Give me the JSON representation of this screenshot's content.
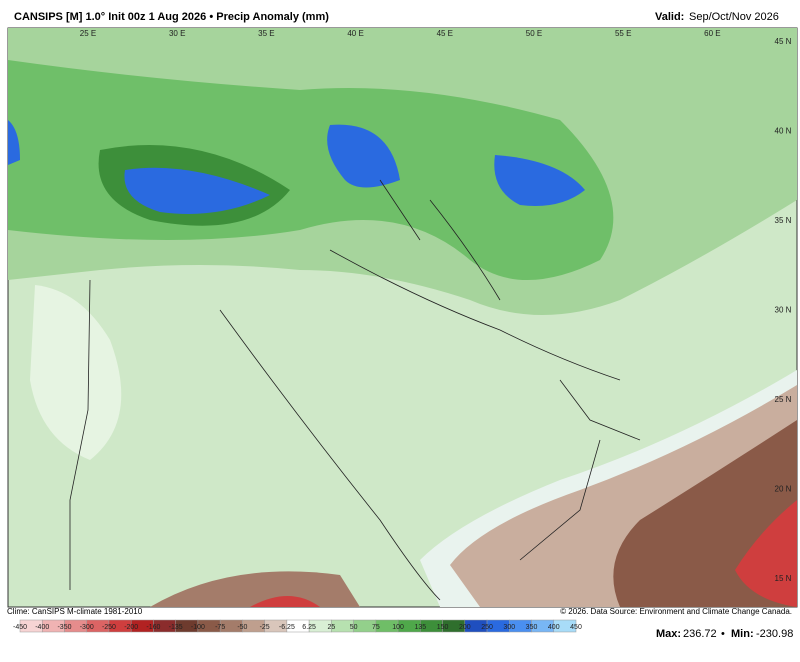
{
  "header": {
    "title": "CANSIPS [M] 1.0° Init 00z 1 Aug 2026 • Precip Anomaly (mm)",
    "valid_label": "Valid:",
    "valid_value": "Sep/Oct/Nov 2026"
  },
  "map": {
    "lon_labels": [
      "25 E",
      "30 E",
      "35 E",
      "40 E",
      "45 E",
      "50 E",
      "55 E",
      "60 E"
    ],
    "lat_labels": [
      "45 N",
      "40 N",
      "35 N",
      "30 N",
      "25 N",
      "20 N",
      "15 N"
    ]
  },
  "colorbar": {
    "ticks": [
      -450,
      -400,
      -350,
      -300,
      -250,
      -200,
      -160,
      -135,
      -100,
      -75,
      -50,
      -25,
      -6.25,
      6.25,
      25,
      50,
      75,
      100,
      135,
      150,
      200,
      250,
      300,
      350,
      400,
      450
    ],
    "colors": [
      "#f7d4d4",
      "#f0b3b3",
      "#e68c8c",
      "#dc6464",
      "#cf3e3e",
      "#b22222",
      "#8b2c2c",
      "#6e3b2e",
      "#8a5a48",
      "#a47c6a",
      "#bf9f8e",
      "#d9c6bb",
      "#ffffff",
      "#d9efd5",
      "#b7e1b0",
      "#93d08b",
      "#6fbe67",
      "#4fa84a",
      "#3d8f3a",
      "#2f6f2d",
      "#1f4fbf",
      "#2a6ae0",
      "#4a8ff0",
      "#78b6f5",
      "#a8dcf8"
    ]
  },
  "footer": {
    "clime": "Clime: CanSIPS M-climate 1981-2010",
    "credit": "© 2026. Data Source: Environment and Climate Change Canada.",
    "max_label": "Max:",
    "max": 236.72,
    "separator": "•",
    "min_label": "Min:",
    "min": -230.98
  }
}
